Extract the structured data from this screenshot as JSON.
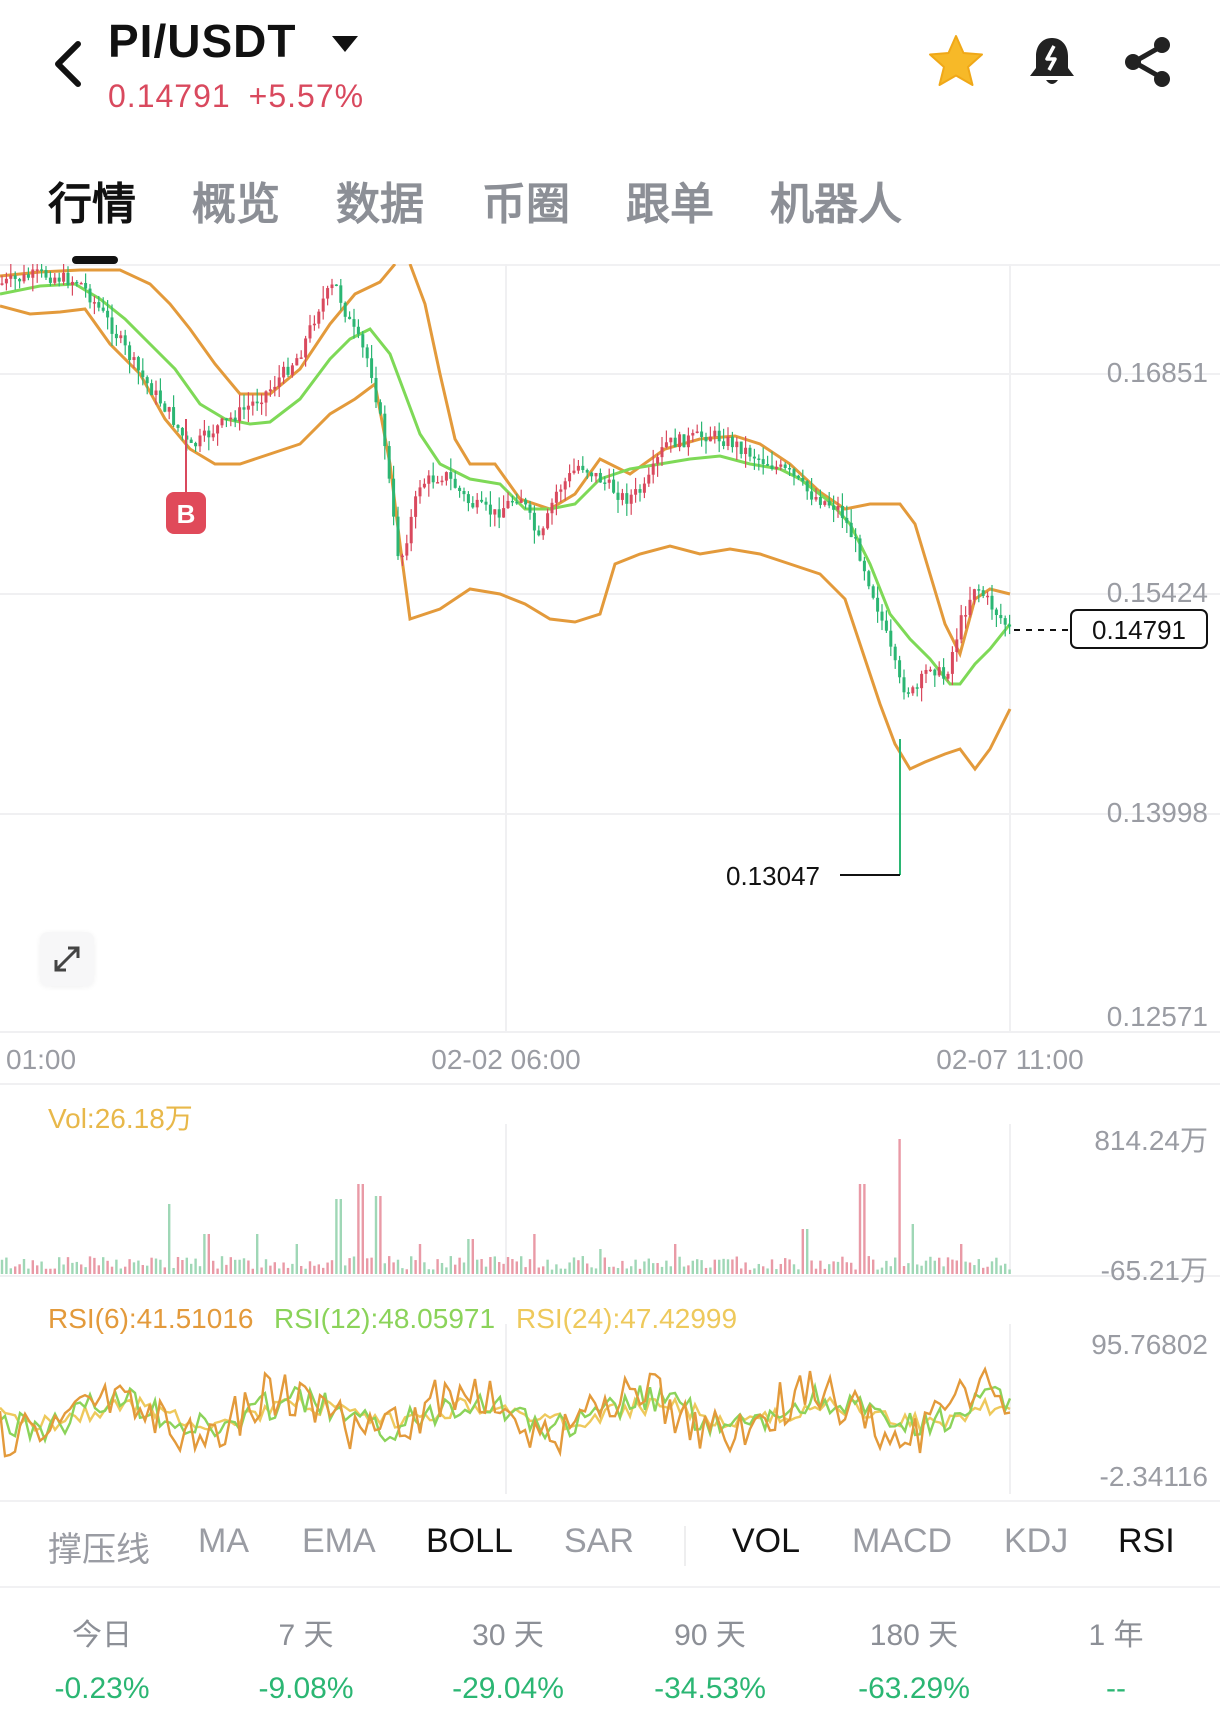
{
  "header": {
    "pair": "PI/USDT",
    "price": "0.14791",
    "change": "+5.57%",
    "icons": [
      "back-icon",
      "caret-down-icon",
      "star-icon",
      "bell-alert-icon",
      "share-icon"
    ]
  },
  "tabs": [
    {
      "label": "行情",
      "active": true
    },
    {
      "label": "概览",
      "active": false
    },
    {
      "label": "数据",
      "active": false
    },
    {
      "label": "币圈",
      "active": false
    },
    {
      "label": "跟单",
      "active": false
    },
    {
      "label": "机器人",
      "active": false
    }
  ],
  "chart": {
    "price_axis": [
      "0.16851",
      "0.15424",
      "0.13998",
      "0.12571"
    ],
    "current_price_tag": "0.14791",
    "low_marker": "0.13047",
    "buy_marker": "B",
    "time_axis": [
      "01:00",
      "02-02 06:00",
      "02-07 11:00"
    ],
    "volume_label": "Vol:26.18万",
    "volume_axis": [
      "814.24万",
      "-65.21万"
    ],
    "rsi_labels": [
      "RSI(6):41.51016",
      "RSI(12):48.05971",
      "RSI(24):47.42999"
    ],
    "rsi_axis": [
      "95.76802",
      "-2.34116"
    ],
    "colors": {
      "up": "#d9495e",
      "down": "#2bb673",
      "boll_band": "#e8a23b",
      "boll_mid": "#7ed957",
      "rsi6": "#e39a3b",
      "rsi12": "#8bd35a",
      "rsi24": "#eec95c",
      "vol_label": "#e8b84a"
    }
  },
  "indicators": [
    {
      "label": "撑压线",
      "on": false
    },
    {
      "label": "MA",
      "on": false
    },
    {
      "label": "EMA",
      "on": false
    },
    {
      "label": "BOLL",
      "on": true
    },
    {
      "label": "SAR",
      "on": false
    },
    {
      "label": "VOL",
      "on": true
    },
    {
      "label": "MACD",
      "on": false
    },
    {
      "label": "KDJ",
      "on": false
    },
    {
      "label": "RSI",
      "on": true
    }
  ],
  "performance": [
    {
      "label": "今日",
      "value": "-0.23%"
    },
    {
      "label": "7 天",
      "value": "-9.08%"
    },
    {
      "label": "30 天",
      "value": "-29.04%"
    },
    {
      "label": "90 天",
      "value": "-34.53%"
    },
    {
      "label": "180 天",
      "value": "-63.29%"
    },
    {
      "label": "1 年",
      "value": "--"
    }
  ]
}
